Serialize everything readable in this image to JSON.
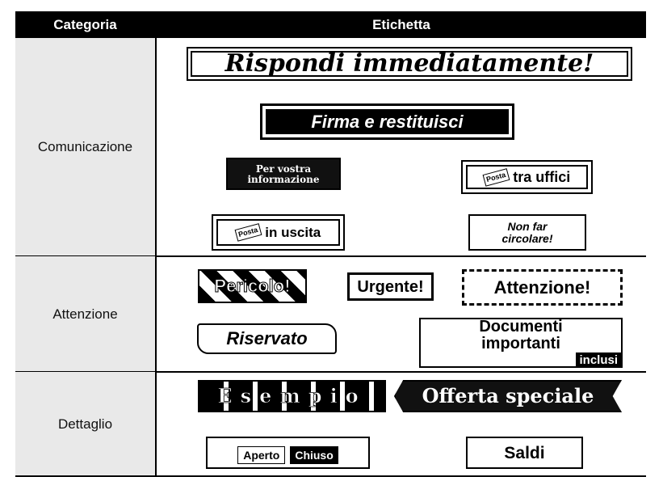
{
  "header": {
    "category": "Categoria",
    "label": "Etichetta"
  },
  "rows": [
    {
      "category": "Comunicazione",
      "labels": [
        [
          "Rispondi immediatamente!"
        ],
        [
          "Firma e restituisci"
        ],
        [
          "Per vostra",
          "informazione"
        ],
        [
          "Posta",
          "tra uffici"
        ],
        [
          "Posta",
          "in uscita"
        ],
        [
          "Non far",
          "circolare!"
        ]
      ]
    },
    {
      "category": "Attenzione",
      "labels": [
        [
          "Pericolo!"
        ],
        [
          "Urgente!"
        ],
        [
          "Attenzione!"
        ],
        [
          "Riservato"
        ],
        [
          "Documenti",
          "importanti",
          "inclusi"
        ]
      ]
    },
    {
      "category": "Dettaglio",
      "labels": [
        [
          "Esempio"
        ],
        [
          "Offerta speciale"
        ],
        [
          "Aperto",
          "Chiuso"
        ],
        [
          "Saldi"
        ]
      ]
    }
  ]
}
